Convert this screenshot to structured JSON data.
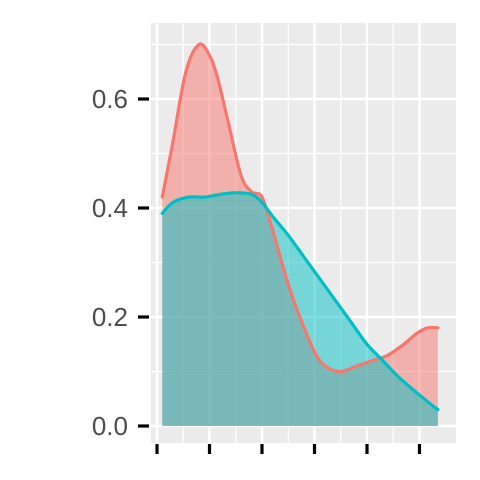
{
  "chart_data": {
    "type": "area",
    "title": "",
    "xlabel": "",
    "ylabel": "",
    "xlim": [
      -0.05,
      5.35
    ],
    "ylim": [
      0,
      0.72
    ],
    "x_ticks": [
      0,
      1,
      2,
      3,
      4,
      5
    ],
    "y_ticks": [
      0.0,
      0.2,
      0.4,
      0.6
    ],
    "y_tick_labels": [
      "0.0",
      "0.2",
      "0.4",
      "0.6"
    ],
    "grid": true,
    "legend": "none",
    "series": [
      {
        "color": "#F8766D",
        "fill": "#F8766D",
        "x": [
          0.1,
          0.3,
          0.55,
          0.8,
          1.0,
          1.15,
          1.35,
          1.6,
          1.8,
          2.0,
          2.2,
          2.5,
          2.8,
          3.1,
          3.45,
          3.8,
          4.1,
          4.4,
          4.7,
          4.95,
          5.15,
          5.35
        ],
        "y": [
          0.42,
          0.52,
          0.65,
          0.7,
          0.68,
          0.64,
          0.56,
          0.46,
          0.43,
          0.42,
          0.36,
          0.26,
          0.18,
          0.12,
          0.1,
          0.11,
          0.12,
          0.13,
          0.15,
          0.17,
          0.18,
          0.18
        ]
      },
      {
        "color": "#00BFC4",
        "fill": "#00BFC4",
        "x": [
          0.1,
          0.3,
          0.6,
          0.9,
          1.2,
          1.5,
          1.8,
          2.0,
          2.2,
          2.5,
          2.8,
          3.1,
          3.4,
          3.7,
          4.0,
          4.3,
          4.6,
          4.9,
          5.15,
          5.35
        ],
        "y": [
          0.39,
          0.41,
          0.42,
          0.42,
          0.425,
          0.428,
          0.425,
          0.41,
          0.385,
          0.35,
          0.31,
          0.27,
          0.23,
          0.19,
          0.15,
          0.12,
          0.09,
          0.065,
          0.045,
          0.03
        ]
      }
    ]
  }
}
